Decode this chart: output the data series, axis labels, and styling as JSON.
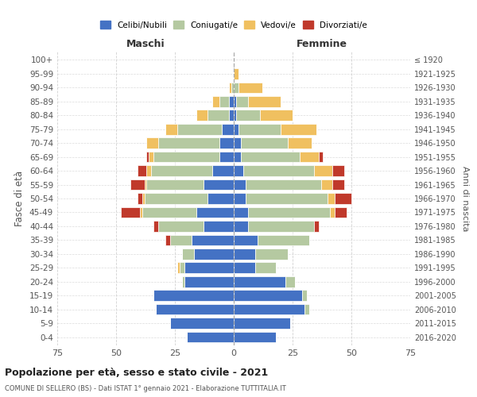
{
  "age_groups": [
    "100+",
    "95-99",
    "90-94",
    "85-89",
    "80-84",
    "75-79",
    "70-74",
    "65-69",
    "60-64",
    "55-59",
    "50-54",
    "45-49",
    "40-44",
    "35-39",
    "30-34",
    "25-29",
    "20-24",
    "15-19",
    "10-14",
    "5-9",
    "0-4"
  ],
  "birth_years": [
    "≤ 1920",
    "1921-1925",
    "1926-1930",
    "1931-1935",
    "1936-1940",
    "1941-1945",
    "1946-1950",
    "1951-1955",
    "1956-1960",
    "1961-1965",
    "1966-1970",
    "1971-1975",
    "1976-1980",
    "1981-1985",
    "1986-1990",
    "1991-1995",
    "1996-2000",
    "2001-2005",
    "2006-2010",
    "2011-2015",
    "2016-2020"
  ],
  "maschi": {
    "celibi": [
      0,
      0,
      0,
      2,
      2,
      5,
      6,
      6,
      9,
      13,
      11,
      16,
      13,
      18,
      17,
      21,
      21,
      34,
      33,
      27,
      20
    ],
    "coniugati": [
      0,
      0,
      1,
      4,
      9,
      19,
      26,
      28,
      26,
      24,
      27,
      23,
      19,
      9,
      5,
      2,
      1,
      0,
      0,
      0,
      0
    ],
    "vedovi": [
      0,
      0,
      1,
      3,
      5,
      5,
      5,
      2,
      2,
      1,
      1,
      1,
      0,
      0,
      0,
      1,
      0,
      0,
      0,
      0,
      0
    ],
    "divorziati": [
      0,
      0,
      0,
      0,
      0,
      0,
      0,
      1,
      4,
      6,
      2,
      8,
      2,
      2,
      0,
      0,
      0,
      0,
      0,
      0,
      0
    ]
  },
  "femmine": {
    "nubili": [
      0,
      0,
      0,
      1,
      1,
      2,
      3,
      3,
      4,
      5,
      5,
      6,
      6,
      10,
      9,
      9,
      22,
      29,
      30,
      24,
      18
    ],
    "coniugate": [
      0,
      0,
      2,
      5,
      10,
      18,
      20,
      25,
      30,
      32,
      35,
      35,
      28,
      22,
      14,
      9,
      4,
      2,
      2,
      0,
      0
    ],
    "vedove": [
      0,
      2,
      10,
      14,
      14,
      15,
      10,
      8,
      8,
      5,
      3,
      2,
      0,
      0,
      0,
      0,
      0,
      0,
      0,
      0,
      0
    ],
    "divorziate": [
      0,
      0,
      0,
      0,
      0,
      0,
      0,
      2,
      5,
      5,
      7,
      5,
      2,
      0,
      0,
      0,
      0,
      0,
      0,
      0,
      0
    ]
  },
  "colors": {
    "celibi": "#4472c4",
    "coniugati": "#b5c9a1",
    "vedovi": "#f0c060",
    "divorziati": "#c0392b"
  },
  "xlim": 75,
  "title": "Popolazione per età, sesso e stato civile - 2021",
  "subtitle": "COMUNE DI SELLERO (BS) - Dati ISTAT 1° gennaio 2021 - Elaborazione TUTTITALIA.IT",
  "ylabel_left": "Fasce di età",
  "ylabel_right": "Anni di nascita",
  "xlabel_maschi": "Maschi",
  "xlabel_femmine": "Femmine",
  "legend_labels": [
    "Celibi/Nubili",
    "Coniugati/e",
    "Vedovi/e",
    "Divorziati/e"
  ],
  "bg_color": "#ffffff",
  "grid_color": "#cccccc"
}
